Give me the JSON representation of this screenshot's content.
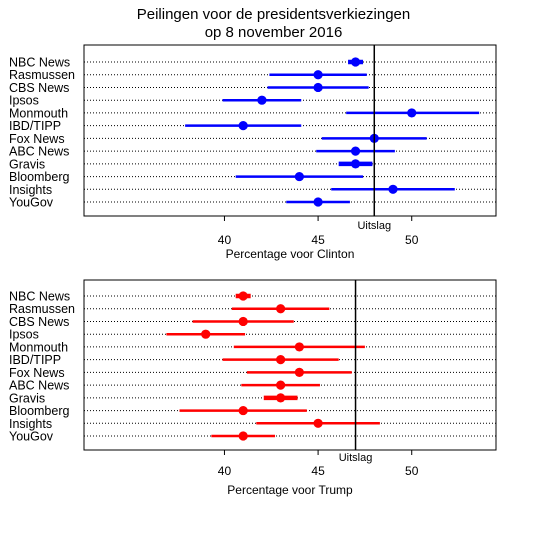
{
  "title": {
    "line1": "Peilingen voor de presidentsverkiezingen",
    "line2": "op 8 november 2016"
  },
  "chart_data": [
    {
      "type": "scatter",
      "name": "clinton",
      "xlabel": "Percentage voor Clinton",
      "xlim": [
        32.5,
        54.5
      ],
      "xticks": [
        40,
        45,
        50
      ],
      "color": "#0000ff",
      "result_label": "Uitslag",
      "result_value": 48,
      "categories": [
        "NBC News",
        "Rasmussen",
        "CBS News",
        "Ipsos",
        "Monmouth",
        "IBD/TIPP",
        "Fox News",
        "ABC News",
        "Gravis",
        "Bloomberg",
        "Insights",
        "YouGov"
      ],
      "values": [
        47,
        45,
        45,
        42,
        50,
        41,
        48,
        47,
        47,
        44,
        49,
        45
      ],
      "lower": [
        46.6,
        42.4,
        42.3,
        39.9,
        46.5,
        37.9,
        45.2,
        44.9,
        46.1,
        40.6,
        45.7,
        43.3
      ],
      "upper": [
        47.4,
        47.6,
        47.7,
        44.1,
        53.6,
        44.1,
        50.8,
        49.1,
        47.9,
        47.4,
        52.3,
        46.7
      ]
    },
    {
      "type": "scatter",
      "name": "trump",
      "xlabel": "Percentage voor Trump",
      "xlim": [
        32.5,
        54.5
      ],
      "xticks": [
        40,
        45,
        50
      ],
      "color": "#ff0000",
      "result_label": "Uitslag",
      "result_value": 47,
      "categories": [
        "NBC News",
        "Rasmussen",
        "CBS News",
        "Ipsos",
        "Monmouth",
        "IBD/TIPP",
        "Fox News",
        "ABC News",
        "Gravis",
        "Bloomberg",
        "Insights",
        "YouGov"
      ],
      "values": [
        41,
        43,
        41,
        39,
        44,
        43,
        44,
        43,
        43,
        41,
        45,
        41
      ],
      "lower": [
        40.6,
        40.4,
        38.3,
        36.9,
        40.5,
        39.9,
        41.2,
        40.9,
        42.1,
        37.6,
        41.7,
        39.3
      ],
      "upper": [
        41.4,
        45.6,
        43.7,
        41.1,
        47.5,
        46.1,
        46.8,
        45.1,
        43.9,
        44.4,
        48.3,
        42.7
      ]
    }
  ]
}
